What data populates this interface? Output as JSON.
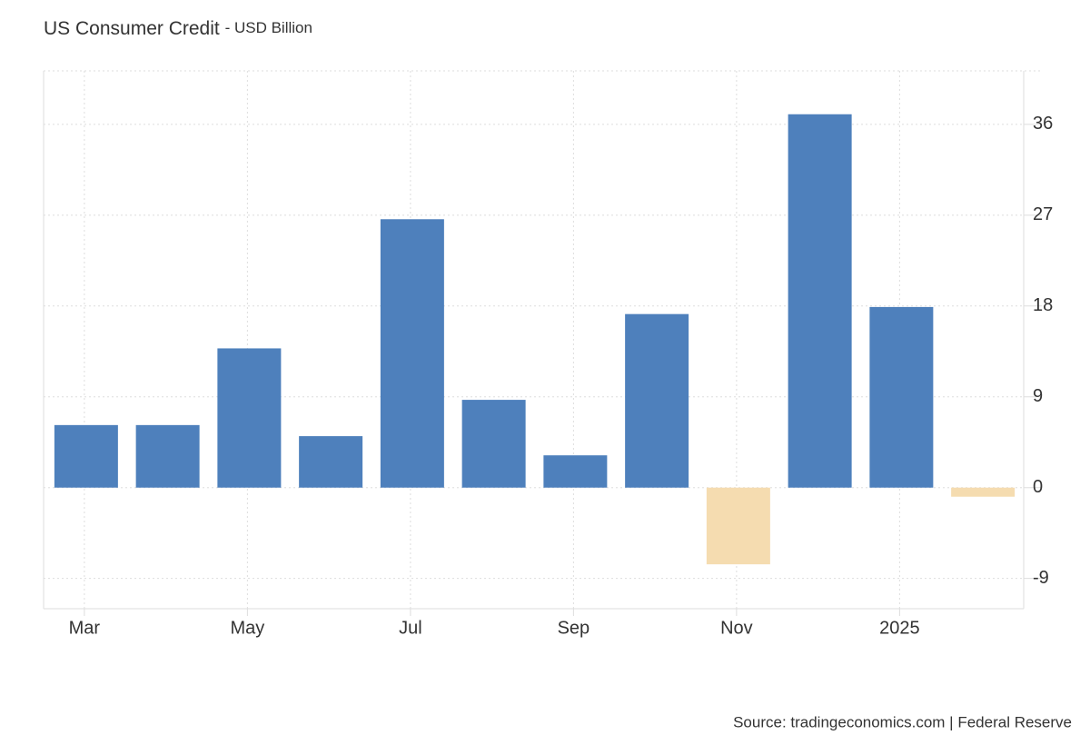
{
  "chart_data": {
    "type": "bar",
    "title": "US Consumer Credit",
    "subtitle": "- USD Billion",
    "source": "Source: tradingeconomics.com | Federal Reserve",
    "categories": [
      "Mar",
      null,
      "May",
      null,
      "Jul",
      null,
      "Sep",
      null,
      "Nov",
      null,
      "2025",
      null
    ],
    "values": [
      6.2,
      6.2,
      13.8,
      5.1,
      26.6,
      8.7,
      3.2,
      17.2,
      -7.6,
      37.0,
      17.9,
      -0.9
    ],
    "color": "#4e80bc",
    "negative_color": "#f5dcb0",
    "ylim": [
      -12,
      41.3
    ],
    "yticks": [
      -9,
      0,
      9,
      18,
      27,
      36
    ],
    "grid": true
  }
}
